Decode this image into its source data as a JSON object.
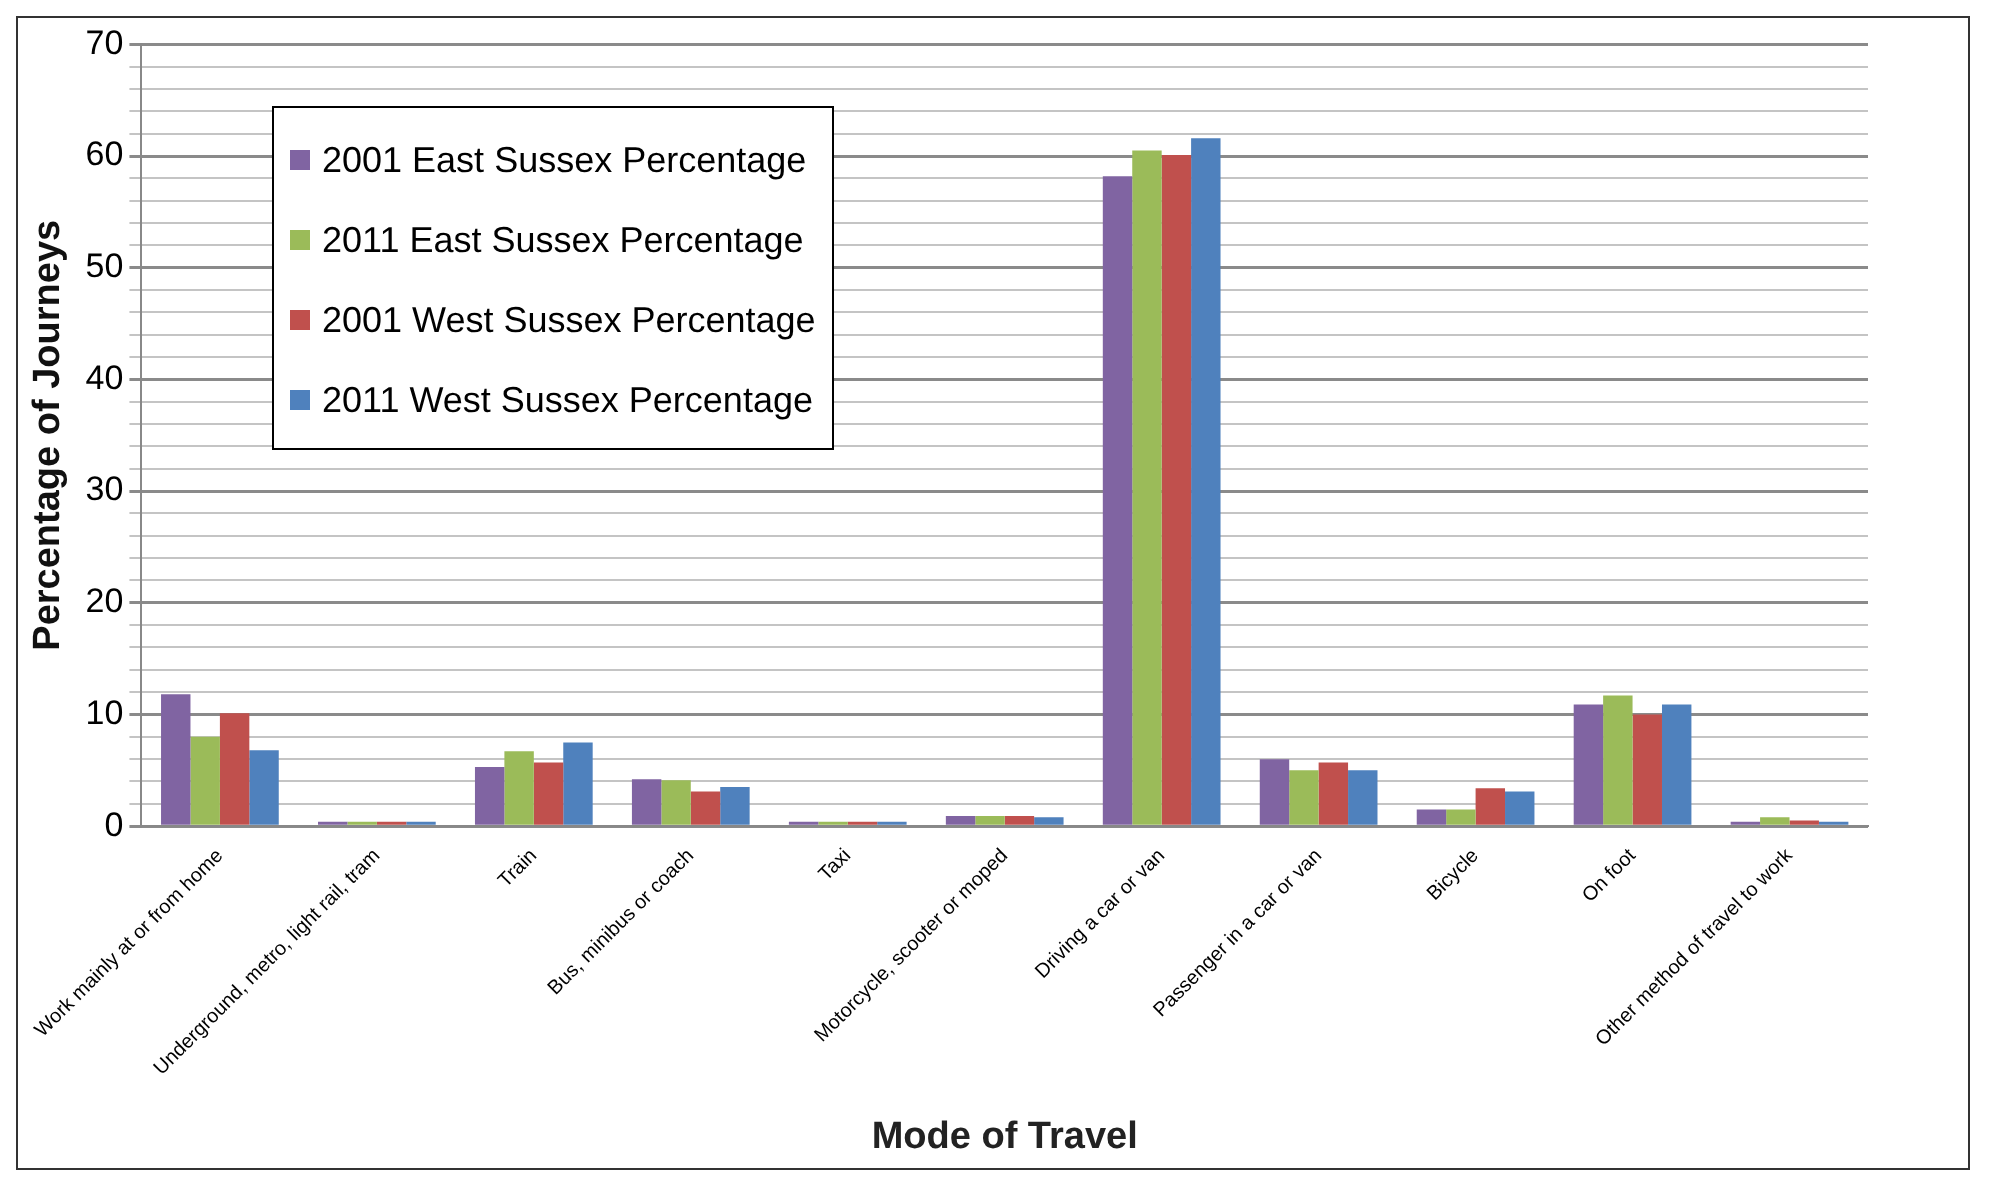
{
  "chart_data": {
    "type": "bar",
    "xlabel": "Mode of Travel",
    "ylabel": "Percentage of Journeys",
    "categories": [
      "Work mainly at or from home",
      "Underground, metro, light rail, tram",
      "Train",
      "Bus, minibus or coach",
      "Taxi",
      "Motorcycle, scooter or moped",
      "Driving a car or van",
      "Passenger in a car or van",
      "Bicycle",
      "On foot",
      "Other method of travel to work"
    ],
    "series": [
      {
        "name": "2001 East Sussex Percentage",
        "color": "#8064a2",
        "values": [
          11.8,
          0.4,
          5.3,
          4.2,
          0.4,
          0.9,
          58.2,
          6.0,
          1.5,
          10.9,
          0.4
        ]
      },
      {
        "name": "2011 East Sussex Percentage",
        "color": "#9bbb59",
        "values": [
          8.0,
          0.4,
          6.7,
          4.1,
          0.4,
          0.9,
          60.5,
          5.0,
          1.5,
          11.7,
          0.8
        ]
      },
      {
        "name": "2001 West Sussex Percentage",
        "color": "#c0504d",
        "values": [
          10.1,
          0.4,
          5.7,
          3.1,
          0.4,
          0.9,
          60.1,
          5.7,
          3.4,
          10.0,
          0.5
        ]
      },
      {
        "name": "2011 West Sussex Percentage",
        "color": "#4f81bd",
        "values": [
          6.8,
          0.4,
          7.5,
          3.5,
          0.4,
          0.8,
          61.6,
          5.0,
          3.1,
          10.9,
          0.4
        ]
      }
    ],
    "ylim": [
      0,
      70
    ],
    "yticks": [
      0,
      {
        "value": 2,
        "label": null
      },
      {
        "value": 4,
        "label": null
      },
      {
        "value": 6,
        "label": null
      },
      {
        "value": 8,
        "label": null
      },
      10,
      {
        "value": 12,
        "label": null
      },
      {
        "value": 14,
        "label": null
      },
      {
        "value": 16,
        "label": null
      },
      {
        "value": 18,
        "label": null
      },
      20,
      {
        "value": 22,
        "label": null
      },
      {
        "value": 24,
        "label": null
      },
      {
        "value": 26,
        "label": null
      },
      {
        "value": 28,
        "label": null
      },
      30,
      {
        "value": 32,
        "label": null
      },
      {
        "value": 34,
        "label": null
      },
      {
        "value": 36,
        "label": null
      },
      {
        "value": 38,
        "label": null
      },
      40,
      {
        "value": 42,
        "label": null
      },
      {
        "value": 44,
        "label": null
      },
      {
        "value": 46,
        "label": null
      },
      {
        "value": 48,
        "label": null
      },
      50,
      {
        "value": 52,
        "label": null
      },
      {
        "value": 54,
        "label": null
      },
      {
        "value": 56,
        "label": null
      },
      {
        "value": 58,
        "label": null
      },
      60,
      {
        "value": 62,
        "label": null
      },
      {
        "value": 64,
        "label": null
      },
      {
        "value": 66,
        "label": null
      },
      {
        "value": 68,
        "label": null
      },
      70
    ],
    "grid": "y",
    "legend": "top left"
  }
}
